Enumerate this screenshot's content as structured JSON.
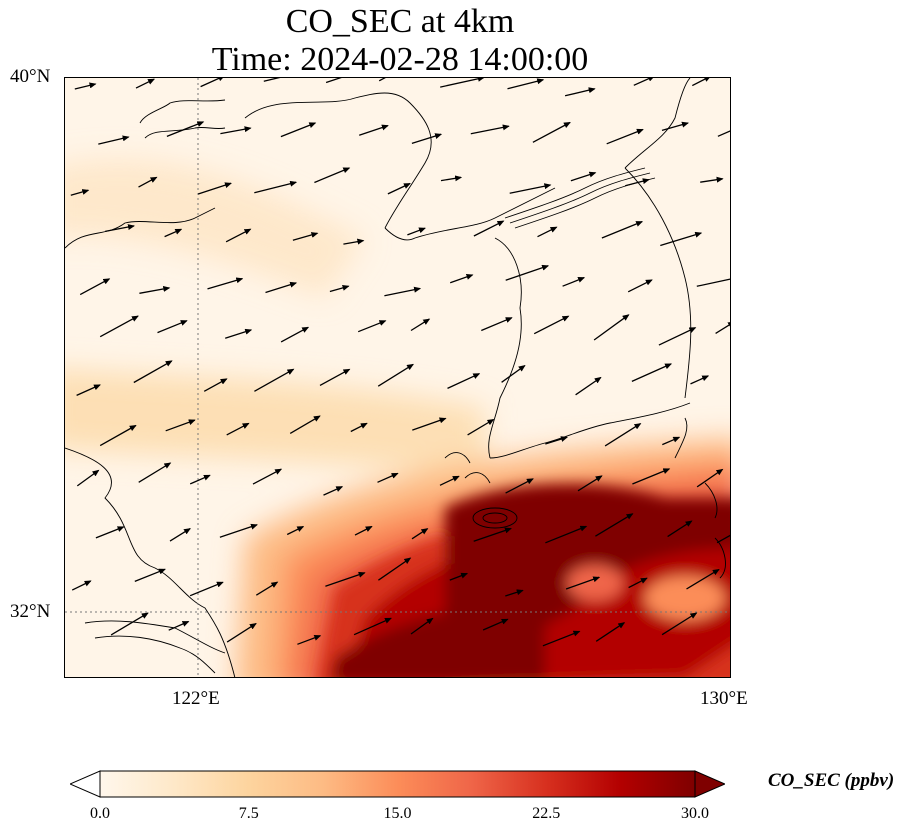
{
  "title": {
    "line1": "CO_SEC at 4km",
    "line2": "Time: 2024-02-28 14:00:00"
  },
  "axes": {
    "lat_labels": [
      "40°N",
      "32°N"
    ],
    "lon_labels": [
      "122°E",
      "130°E"
    ],
    "lat_range": [
      31.2,
      40.0
    ],
    "lon_range": [
      120.0,
      130.0
    ],
    "gridlines": "dotted at 122°E and 32°N"
  },
  "colorbar": {
    "title": "CO_SEC (ppbv)",
    "ticks": [
      "0.0",
      "7.5",
      "15.0",
      "22.5",
      "30.0"
    ],
    "min": 0,
    "max": 30,
    "colormap": "OrRd",
    "extend": "both",
    "colors": [
      "#fff7ec",
      "#fee8c8",
      "#fdd49e",
      "#fdbb84",
      "#fc8d59",
      "#ef6548",
      "#d7301f",
      "#b30000",
      "#7f0000"
    ]
  },
  "map_features": [
    "coastlines",
    "wind-vectors",
    "co-concentration-field"
  ]
}
